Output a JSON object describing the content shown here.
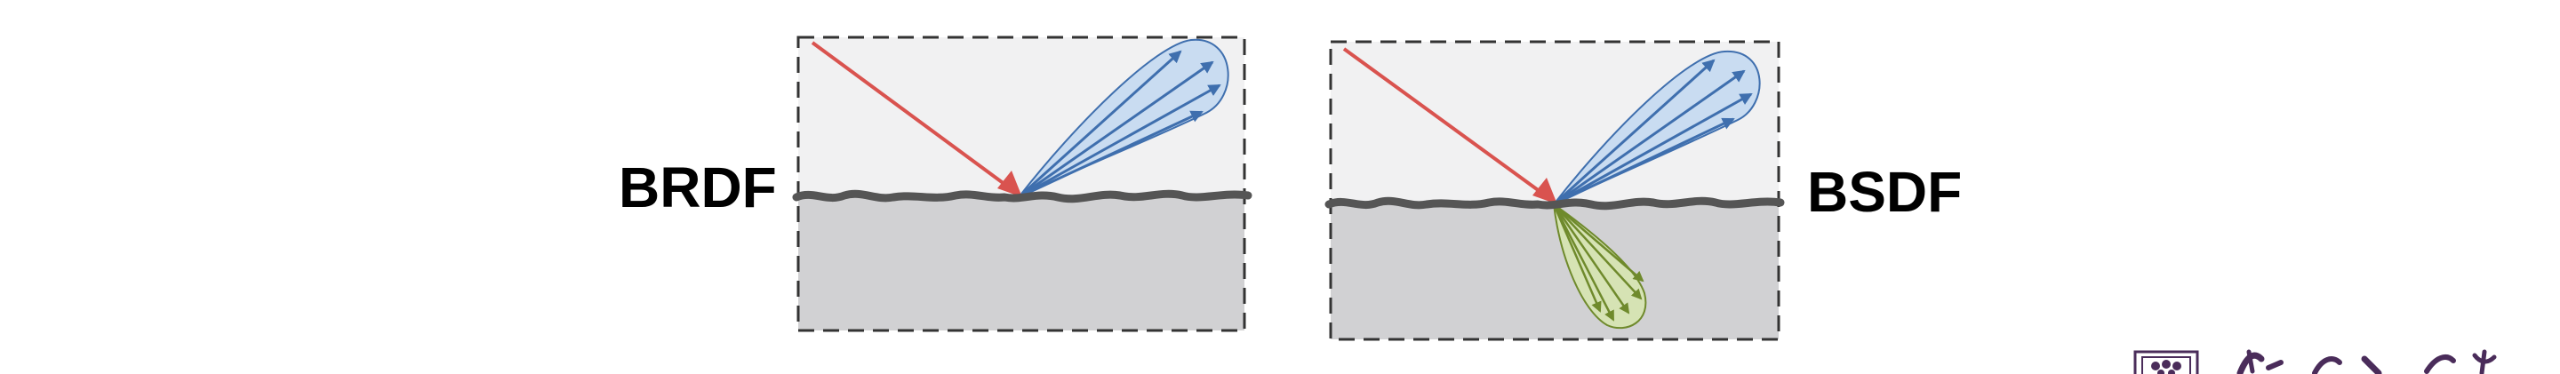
{
  "labels": {
    "left": "BRDF",
    "right": "BSDF"
  },
  "colors": {
    "incident_ray": "#d9534f",
    "reflection_lobe_fill": "#c9dcf1",
    "reflection_ray": "#3f6fae",
    "transmission_lobe_fill": "#d6e3b4",
    "transmission_ray": "#6f8a2c",
    "surface_line": "#555555",
    "upper_medium": "#f1f1f2",
    "lower_medium": "#d1d1d3",
    "frame_dash": "#333333",
    "logo_ink": "#4a2c5a"
  },
  "icons": {
    "watermark": "university-crest-and-calligraphy"
  }
}
